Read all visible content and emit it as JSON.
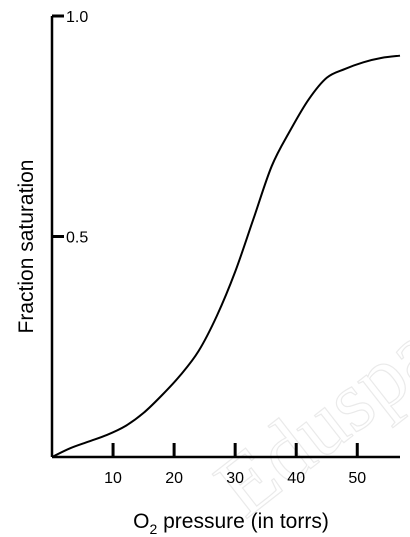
{
  "chart_data": {
    "type": "line",
    "title": "",
    "xlabel": "O2 pressure (in torrs)",
    "xlabel_parts": {
      "pre": "O",
      "sub": "2",
      "post": " pressure (in torrs)"
    },
    "ylabel": "Fraction saturation",
    "xlim": [
      0,
      57
    ],
    "ylim": [
      0,
      1.0
    ],
    "x_ticks": [
      10,
      20,
      30,
      40,
      50
    ],
    "y_ticks": [
      {
        "value": 0.5,
        "label": "0.5"
      },
      {
        "value": 1.0,
        "label": "1.0"
      }
    ],
    "grid": false,
    "legend": "none",
    "series": [
      {
        "x": [
          0,
          3,
          6,
          9,
          12,
          15,
          18,
          21,
          24,
          27,
          30,
          33,
          36,
          39,
          42,
          45,
          48,
          51,
          54,
          57
        ],
        "y": [
          0.0,
          0.02,
          0.035,
          0.05,
          0.07,
          0.1,
          0.14,
          0.185,
          0.24,
          0.32,
          0.42,
          0.54,
          0.66,
          0.74,
          0.81,
          0.86,
          0.88,
          0.895,
          0.905,
          0.91
        ]
      }
    ]
  },
  "watermark_text": "Edusparg"
}
